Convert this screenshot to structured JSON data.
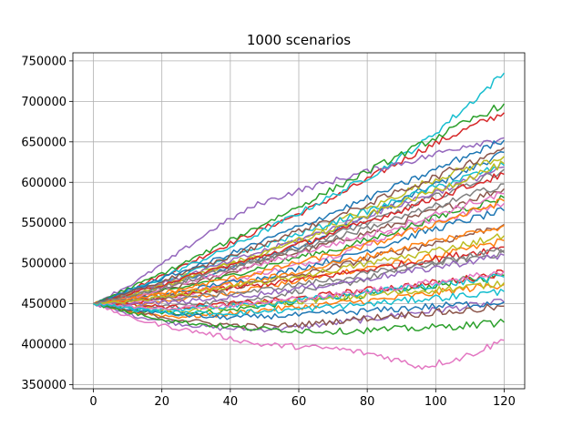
{
  "chart_data": {
    "type": "line",
    "title": "1000 scenarios",
    "xlabel": "",
    "ylabel": "",
    "xlim": [
      -6,
      126
    ],
    "ylim": [
      345000,
      760000
    ],
    "x_ticks": [
      0,
      20,
      40,
      60,
      80,
      100,
      120
    ],
    "y_ticks": [
      350000,
      400000,
      450000,
      500000,
      550000,
      600000,
      650000,
      700000,
      750000
    ],
    "grid": true,
    "legend": "none",
    "n_scenarios": 1000,
    "x": [
      0,
      12,
      24,
      36,
      48,
      60,
      72,
      84,
      96,
      108,
      120
    ],
    "start_value": 450000,
    "palette": [
      "#1f77b4",
      "#ff7f0e",
      "#2ca02c",
      "#d62728",
      "#9467bd",
      "#8c564b",
      "#e377c2",
      "#7f7f7f",
      "#bcbd22",
      "#17becf"
    ],
    "series": [
      {
        "values": [
          450000,
          462000,
          478000,
          488000,
          506000,
          521000,
          543000,
          566000,
          590000,
          612000,
          637000
        ]
      },
      {
        "values": [
          450000,
          449000,
          455000,
          461000,
          470000,
          478000,
          489000,
          497000,
          505000,
          516000,
          528000
        ]
      },
      {
        "values": [
          450000,
          441000,
          438000,
          440000,
          447000,
          452000,
          458000,
          463000,
          470000,
          479000,
          485000
        ]
      },
      {
        "values": [
          450000,
          470000,
          492000,
          517000,
          540000,
          561000,
          585000,
          613000,
          640000,
          664000,
          686000
        ]
      },
      {
        "values": [
          450000,
          435000,
          426000,
          420000,
          418000,
          421000,
          427000,
          433000,
          440000,
          446000,
          452000
        ]
      },
      {
        "values": [
          450000,
          458000,
          470000,
          483000,
          500000,
          514000,
          528000,
          542000,
          560000,
          576000,
          592000
        ]
      },
      {
        "values": [
          450000,
          452000,
          458000,
          472000,
          487000,
          498000,
          512000,
          531000,
          548000,
          560000,
          574000
        ]
      },
      {
        "values": [
          450000,
          445000,
          448000,
          452000,
          456000,
          466000,
          473000,
          486000,
          497000,
          505000,
          513000
        ]
      },
      {
        "values": [
          450000,
          464000,
          481000,
          495000,
          510000,
          530000,
          553000,
          574000,
          598000,
          616000,
          632000
        ]
      },
      {
        "values": [
          450000,
          467000,
          490000,
          512000,
          536000,
          562000,
          588000,
          615000,
          648000,
          690000,
          735000
        ]
      },
      {
        "values": [
          450000,
          456000,
          463000,
          474000,
          481000,
          494000,
          506000,
          521000,
          538000,
          552000,
          565000
        ]
      },
      {
        "values": [
          450000,
          439000,
          434000,
          436000,
          442000,
          446000,
          451000,
          455000,
          461000,
          468000,
          474000
        ]
      },
      {
        "values": [
          450000,
          460000,
          468000,
          480000,
          494000,
          508000,
          518000,
          534000,
          551000,
          567000,
          581000
        ]
      },
      {
        "values": [
          450000,
          448000,
          446000,
          449000,
          452000,
          457000,
          463000,
          469000,
          474000,
          480000,
          489000
        ]
      },
      {
        "values": [
          450000,
          476000,
          510000,
          545000,
          573000,
          590000,
          604000,
          618000,
          630000,
          645000,
          655000
        ]
      },
      {
        "values": [
          450000,
          453000,
          460000,
          465000,
          477000,
          485000,
          497000,
          510000,
          521000,
          534000,
          548000
        ]
      },
      {
        "values": [
          450000,
          431000,
          420000,
          411000,
          400000,
          397000,
          394000,
          386000,
          372000,
          384000,
          405000
        ]
      },
      {
        "values": [
          450000,
          461000,
          475000,
          491000,
          505000,
          520000,
          538000,
          556000,
          576000,
          595000,
          616000
        ]
      },
      {
        "values": [
          450000,
          447000,
          441000,
          444000,
          450000,
          453000,
          457000,
          462000,
          466000,
          470000,
          476000
        ]
      },
      {
        "values": [
          450000,
          468000,
          483000,
          500000,
          519000,
          536000,
          553000,
          570000,
          588000,
          605000,
          621000
        ]
      },
      {
        "values": [
          450000,
          442000,
          437000,
          433000,
          434000,
          436000,
          439000,
          442000,
          446000,
          449000,
          452000
        ]
      },
      {
        "values": [
          450000,
          458000,
          466000,
          478000,
          488000,
          501000,
          513000,
          527000,
          544000,
          560000,
          577000
        ]
      },
      {
        "values": [
          450000,
          472000,
          495000,
          520000,
          545000,
          570000,
          596000,
          622000,
          647000,
          672000,
          697000
        ]
      },
      {
        "values": [
          450000,
          451000,
          459000,
          467000,
          473000,
          480000,
          487000,
          495000,
          503000,
          511000,
          520000
        ]
      },
      {
        "values": [
          450000,
          466000,
          480000,
          497000,
          513000,
          529000,
          546000,
          565000,
          582000,
          600000,
          619000
        ]
      },
      {
        "values": [
          450000,
          440000,
          431000,
          425000,
          422000,
          424000,
          429000,
          434000,
          438000,
          441000,
          447000
        ]
      },
      {
        "values": [
          450000,
          459000,
          472000,
          486000,
          498000,
          512000,
          526000,
          539000,
          555000,
          571000,
          586000
        ]
      },
      {
        "values": [
          450000,
          455000,
          457000,
          461000,
          466000,
          474000,
          481000,
          490000,
          499000,
          508000,
          516000
        ]
      },
      {
        "values": [
          450000,
          462000,
          477000,
          494000,
          509000,
          527000,
          545000,
          566000,
          584000,
          603000,
          623000
        ]
      },
      {
        "values": [
          450000,
          444000,
          443000,
          446000,
          449000,
          454000,
          460000,
          466000,
          472000,
          477000,
          483000
        ]
      },
      {
        "values": [
          450000,
          469000,
          487000,
          505000,
          525000,
          545000,
          566000,
          587000,
          608000,
          631000,
          652000
        ]
      },
      {
        "values": [
          450000,
          457000,
          464000,
          471000,
          479000,
          490000,
          501000,
          513000,
          524000,
          535000,
          547000
        ]
      },
      {
        "values": [
          450000,
          438000,
          428000,
          423000,
          419000,
          417000,
          416000,
          418000,
          420000,
          423000,
          427000
        ]
      },
      {
        "values": [
          450000,
          463000,
          479000,
          493000,
          507000,
          523000,
          540000,
          557000,
          575000,
          593000,
          610000
        ]
      },
      {
        "values": [
          450000,
          450000,
          452000,
          456000,
          462000,
          469000,
          476000,
          484000,
          492000,
          501000,
          510000
        ]
      },
      {
        "values": [
          450000,
          465000,
          484000,
          502000,
          521000,
          540000,
          559000,
          580000,
          600000,
          621000,
          643000
        ]
      },
      {
        "values": [
          450000,
          446000,
          445000,
          447000,
          451000,
          456000,
          461000,
          468000,
          475000,
          482000,
          490000
        ]
      },
      {
        "values": [
          450000,
          461000,
          474000,
          489000,
          503000,
          517000,
          533000,
          549000,
          565000,
          581000,
          598000
        ]
      },
      {
        "values": [
          450000,
          453000,
          461000,
          468000,
          476000,
          484000,
          493000,
          503000,
          512000,
          523000,
          534000
        ]
      },
      {
        "values": [
          450000,
          443000,
          439000,
          438000,
          440000,
          443000,
          447000,
          451000,
          456000,
          460000,
          465000
        ]
      }
    ]
  }
}
